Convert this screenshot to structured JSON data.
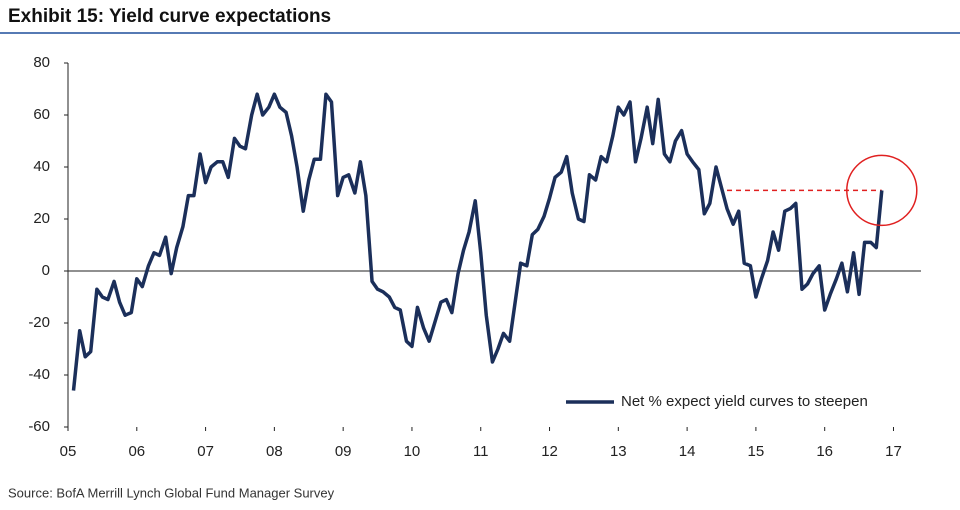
{
  "chart_data": {
    "type": "line",
    "title": "Exhibit 15: Yield curve expectations",
    "source": "Source: BofA Merrill Lynch Global Fund Manager Survey",
    "x": [
      2005.08,
      2005.17,
      2005.25,
      2005.33,
      2005.42,
      2005.5,
      2005.58,
      2005.67,
      2005.75,
      2005.83,
      2005.92,
      2006,
      2006.08,
      2006.17,
      2006.25,
      2006.33,
      2006.42,
      2006.5,
      2006.58,
      2006.67,
      2006.75,
      2006.83,
      2006.92,
      2007,
      2007.08,
      2007.17,
      2007.25,
      2007.33,
      2007.42,
      2007.5,
      2007.58,
      2007.67,
      2007.75,
      2007.83,
      2007.92,
      2008,
      2008.08,
      2008.17,
      2008.25,
      2008.33,
      2008.42,
      2008.5,
      2008.58,
      2008.67,
      2008.75,
      2008.83,
      2008.92,
      2009,
      2009.08,
      2009.17,
      2009.25,
      2009.33,
      2009.42,
      2009.5,
      2009.58,
      2009.67,
      2009.75,
      2009.83,
      2009.92,
      2010,
      2010.08,
      2010.17,
      2010.25,
      2010.33,
      2010.42,
      2010.5,
      2010.58,
      2010.67,
      2010.75,
      2010.83,
      2010.92,
      2011,
      2011.08,
      2011.17,
      2011.25,
      2011.33,
      2011.42,
      2011.5,
      2011.58,
      2011.67,
      2011.75,
      2011.83,
      2011.92,
      2012,
      2012.08,
      2012.17,
      2012.25,
      2012.33,
      2012.42,
      2012.5,
      2012.58,
      2012.67,
      2012.75,
      2012.83,
      2012.92,
      2013,
      2013.08,
      2013.17,
      2013.25,
      2013.33,
      2013.42,
      2013.5,
      2013.58,
      2013.67,
      2013.75,
      2013.83,
      2013.92,
      2014,
      2014.08,
      2014.17,
      2014.25,
      2014.33,
      2014.42,
      2014.5,
      2014.58,
      2014.67,
      2014.75,
      2014.83,
      2014.92,
      2015,
      2015.08,
      2015.17,
      2015.25,
      2015.33,
      2015.42,
      2015.5,
      2015.58,
      2015.67,
      2015.75,
      2015.83,
      2015.92,
      2016,
      2016.08,
      2016.17,
      2016.25,
      2016.33,
      2016.42,
      2016.5,
      2016.58,
      2016.67,
      2016.75,
      2016.83
    ],
    "series": [
      {
        "name": "Net % expect yield curves to steepen",
        "color": "#1b2f5a",
        "values": [
          -46,
          -23,
          -33,
          -31,
          -7,
          -10,
          -11,
          -4,
          -12,
          -17,
          -16,
          -3,
          -6,
          2,
          7,
          6,
          13,
          -1,
          9,
          17,
          29,
          29,
          45,
          34,
          40,
          42,
          42,
          36,
          51,
          48,
          47,
          60,
          68,
          60,
          63,
          68,
          63,
          61,
          52,
          40,
          23,
          35,
          43,
          43,
          68,
          65,
          29,
          36,
          37,
          30,
          42,
          29,
          -4,
          -7,
          -8,
          -10,
          -14,
          -15,
          -27,
          -29,
          -14,
          -22,
          -27,
          -20,
          -12,
          -11,
          -16,
          -1,
          8,
          15,
          27,
          7,
          -17,
          -35,
          -30,
          -24,
          -27,
          -12,
          3,
          2,
          14,
          16,
          21,
          28,
          36,
          38,
          44,
          30,
          20,
          19,
          37,
          35,
          44,
          42,
          52,
          63,
          60,
          65,
          42,
          51,
          63,
          49,
          66,
          45,
          42,
          50,
          54,
          45,
          42,
          39,
          22,
          26,
          40,
          32,
          24,
          18,
          23,
          3,
          2,
          -10,
          -3,
          4,
          15,
          8,
          23,
          24,
          26,
          -7,
          -5,
          -1,
          2,
          -15,
          -9,
          -3,
          3,
          -8,
          7,
          -9,
          11,
          11,
          9,
          31
        ]
      }
    ],
    "reference_line": {
      "y": 31,
      "x": [
        2014.58,
        2016.83
      ],
      "color": "#e02020"
    },
    "xlim": [
      2005,
      2017.4
    ],
    "xticks": [
      {
        "value": 2005,
        "label": "05"
      },
      {
        "value": 2006,
        "label": "06"
      },
      {
        "value": 2007,
        "label": "07"
      },
      {
        "value": 2008,
        "label": "08"
      },
      {
        "value": 2009,
        "label": "09"
      },
      {
        "value": 2010,
        "label": "10"
      },
      {
        "value": 2011,
        "label": "11"
      },
      {
        "value": 2012,
        "label": "12"
      },
      {
        "value": 2013,
        "label": "13"
      },
      {
        "value": 2014,
        "label": "14"
      },
      {
        "value": 2015,
        "label": "15"
      },
      {
        "value": 2016,
        "label": "16"
      },
      {
        "value": 2017,
        "label": "17"
      }
    ],
    "ylim": [
      -60,
      80
    ],
    "yticks": [
      -60,
      -40,
      -20,
      0,
      20,
      40,
      60,
      80
    ],
    "legend": "lower right"
  }
}
